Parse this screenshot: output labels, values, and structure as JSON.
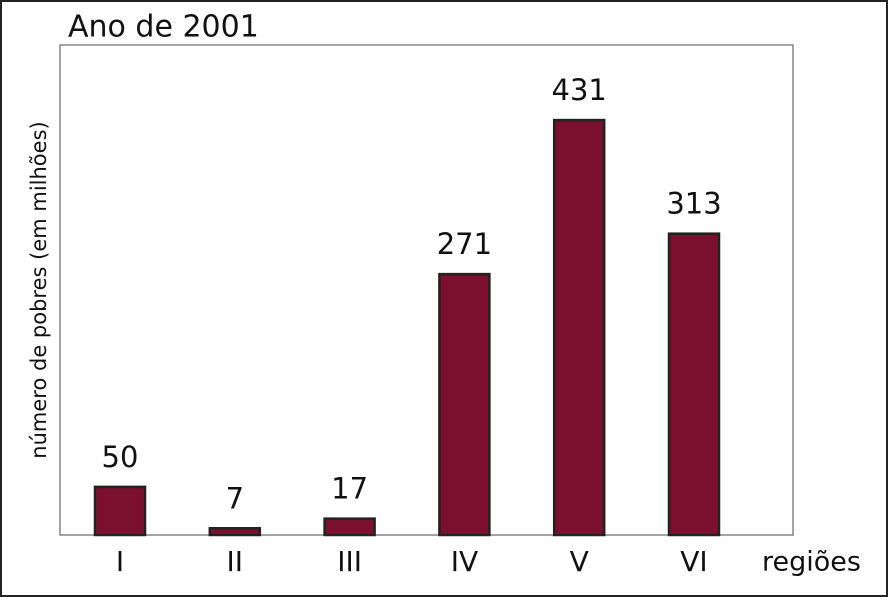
{
  "chart_data": {
    "type": "bar",
    "title": "Ano de 2001",
    "y_label": "número de pobres (em milhões)",
    "x_label": "regiões",
    "categories": [
      "I",
      "II",
      "III",
      "IV",
      "V",
      "VI"
    ],
    "values": [
      50,
      7,
      17,
      271,
      431,
      313
    ],
    "color": "#7a0f2e",
    "ylim": [
      0,
      509
    ]
  }
}
